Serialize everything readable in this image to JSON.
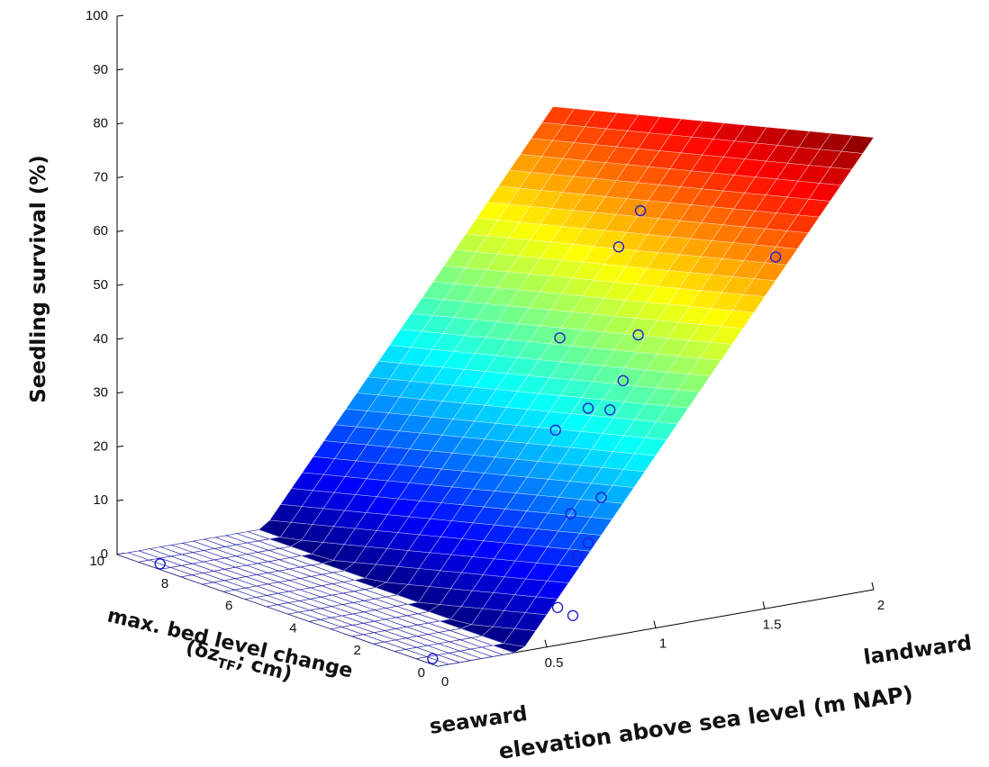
{
  "chart_data": {
    "type": "surface3d+scatter",
    "zlabel": "Seedling survival (%)",
    "xlabel": "elevation above sea level (m NAP)",
    "ylabel_line1": "max. bed level change",
    "ylabel_line2_prefix": "(δz",
    "ylabel_line2_sub": "TF",
    "ylabel_line2_suffix": "; cm)",
    "annotations": {
      "seaward": "seaward",
      "landward": "landward"
    },
    "xlim": [
      0,
      2
    ],
    "ylim": [
      0,
      10
    ],
    "zlim": [
      0,
      100
    ],
    "x_ticks": [
      {
        "v": 0,
        "label": "0"
      },
      {
        "v": 0.5,
        "label": "0.5"
      },
      {
        "v": 1,
        "label": "1"
      },
      {
        "v": 1.5,
        "label": "1.5"
      },
      {
        "v": 2,
        "label": "2"
      }
    ],
    "y_ticks": [
      {
        "v": 0,
        "label": "0"
      },
      {
        "v": 2,
        "label": "2"
      },
      {
        "v": 4,
        "label": "4"
      },
      {
        "v": 6,
        "label": "6"
      },
      {
        "v": 8,
        "label": "8"
      },
      {
        "v": 10,
        "label": "10"
      }
    ],
    "z_ticks": [
      {
        "v": 0,
        "label": "0"
      },
      {
        "v": 10,
        "label": "10"
      },
      {
        "v": 20,
        "label": "20"
      },
      {
        "v": 30,
        "label": "30"
      },
      {
        "v": 40,
        "label": "40"
      },
      {
        "v": 50,
        "label": "50"
      },
      {
        "v": 60,
        "label": "60"
      },
      {
        "v": 70,
        "label": "70"
      },
      {
        "v": 80,
        "label": "80"
      },
      {
        "v": 90,
        "label": "90"
      },
      {
        "v": 100,
        "label": "100"
      }
    ],
    "surface_model": {
      "form": "max(0, a + b*x + c*y)",
      "a": -20,
      "b": 52,
      "c": -1.5
    },
    "surface_colormap": "jet",
    "surface_wireframe_color": "#1a1aa6",
    "marker_color": "#1f1fd0",
    "points": [
      {
        "x": 0.05,
        "y": 9,
        "z": 0
      },
      {
        "x": 0.05,
        "y": 0.5,
        "z": 0
      },
      {
        "x": 0.55,
        "y": 0,
        "z": 7
      },
      {
        "x": 0.62,
        "y": 0,
        "z": 5
      },
      {
        "x": 0.64,
        "y": 0,
        "z": 16
      },
      {
        "x": 0.69,
        "y": 0,
        "z": 18
      },
      {
        "x": 0.61,
        "y": 0,
        "z": 24
      },
      {
        "x": 0.75,
        "y": 0,
        "z": 26
      },
      {
        "x": 0.54,
        "y": 0,
        "z": 40
      },
      {
        "x": 0.69,
        "y": 0,
        "z": 43
      },
      {
        "x": 0.79,
        "y": 0,
        "z": 42
      },
      {
        "x": 0.85,
        "y": 0,
        "z": 47
      },
      {
        "x": 0.92,
        "y": 0,
        "z": 55
      },
      {
        "x": 0.56,
        "y": 0,
        "z": 57
      },
      {
        "x": 0.83,
        "y": 0,
        "z": 72
      },
      {
        "x": 0.93,
        "y": 0,
        "z": 78
      },
      {
        "x": 1.55,
        "y": 0,
        "z": 65
      }
    ]
  }
}
